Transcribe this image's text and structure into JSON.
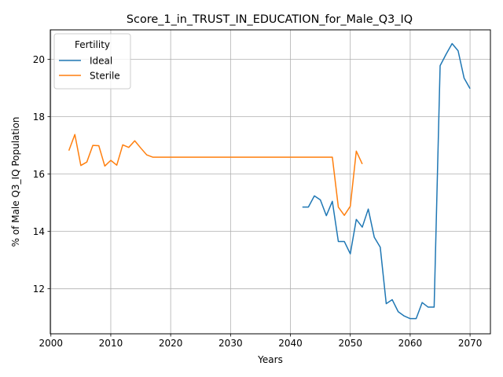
{
  "chart_data": {
    "type": "line",
    "title": "Score_1_in_TRUST_IN_EDUCATION_for_Male_Q3_IQ",
    "xlabel": "Years",
    "ylabel": "% of Male Q3_IQ Population",
    "xlim": [
      1999.9,
      2073.4
    ],
    "ylim": [
      10.43,
      21.03
    ],
    "xticks": [
      2000,
      2010,
      2020,
      2030,
      2040,
      2050,
      2060,
      2070
    ],
    "yticks": [
      12,
      14,
      16,
      18,
      20
    ],
    "grid": true,
    "legend": {
      "title": "Fertility",
      "placement": "top-left"
    },
    "series": [
      {
        "name": "Ideal",
        "color": "#1f77b4",
        "x": [
          2042,
          2043,
          2044,
          2045,
          2046,
          2047,
          2048,
          2049,
          2050,
          2051,
          2052,
          2053,
          2054,
          2055,
          2056,
          2057,
          2058,
          2059,
          2060,
          2061,
          2062,
          2063,
          2064,
          2065,
          2066,
          2067,
          2068,
          2069,
          2070
        ],
        "y": [
          14.85,
          14.85,
          15.24,
          15.1,
          14.55,
          15.05,
          13.65,
          13.65,
          13.22,
          14.42,
          14.15,
          14.78,
          13.8,
          13.45,
          11.48,
          11.62,
          11.2,
          11.05,
          10.96,
          10.96,
          11.52,
          11.36,
          11.36,
          19.78,
          20.18,
          20.55,
          20.3,
          19.35,
          18.98
        ]
      },
      {
        "name": "Sterile",
        "color": "#ff7f0e",
        "x": [
          2003,
          2004,
          2005,
          2006,
          2007,
          2008,
          2009,
          2010,
          2011,
          2012,
          2013,
          2014,
          2015,
          2016,
          2017,
          2018,
          2019,
          2020,
          2021,
          2022,
          2023,
          2024,
          2025,
          2026,
          2027,
          2028,
          2029,
          2030,
          2031,
          2032,
          2033,
          2034,
          2035,
          2036,
          2037,
          2038,
          2039,
          2040,
          2041,
          2042,
          2043,
          2044,
          2045,
          2046,
          2047,
          2048,
          2049,
          2050,
          2051,
          2052
        ],
        "y": [
          16.82,
          17.38,
          16.3,
          16.42,
          17.0,
          16.99,
          16.28,
          16.48,
          16.31,
          17.02,
          16.93,
          17.16,
          16.91,
          16.67,
          16.59,
          16.59,
          16.59,
          16.59,
          16.59,
          16.59,
          16.59,
          16.59,
          16.59,
          16.59,
          16.59,
          16.59,
          16.59,
          16.59,
          16.59,
          16.59,
          16.59,
          16.59,
          16.59,
          16.59,
          16.59,
          16.59,
          16.59,
          16.59,
          16.59,
          16.59,
          16.59,
          16.59,
          16.59,
          16.59,
          16.59,
          14.85,
          14.56,
          14.88,
          16.8,
          16.35
        ]
      }
    ]
  }
}
